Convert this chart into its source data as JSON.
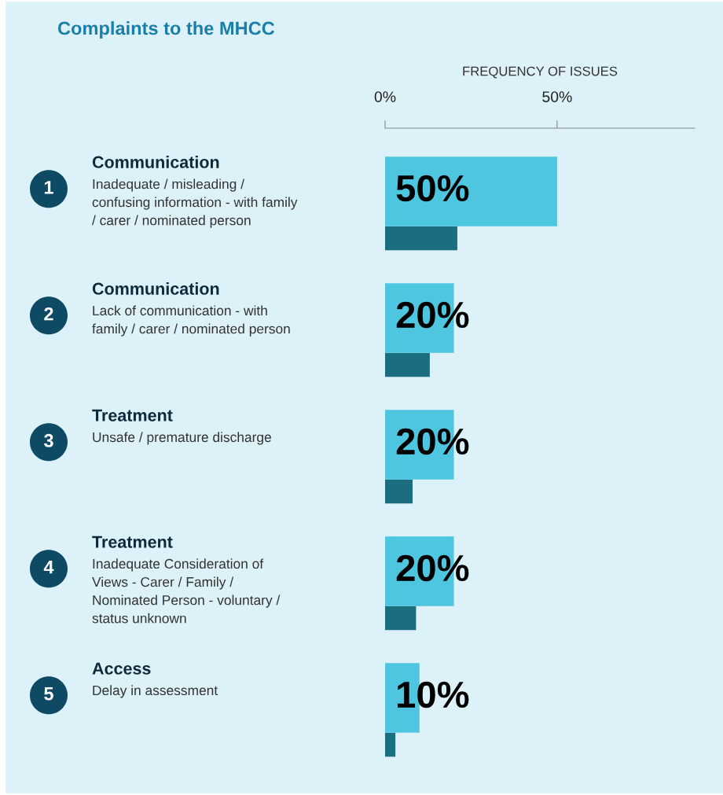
{
  "chart_data": {
    "type": "bar",
    "orientation": "horizontal",
    "title": "Complaints to the MHCC",
    "xlabel": "FREQUENCY OF ISSUES",
    "categories": [
      "Communication\nInadequate / misleading /\nconfusing information - with family\n/ carer / nominated person",
      "Communication\nLack of communication - with\nfamily / carer / nominated person",
      "Treatment\nUnsafe / premature discharge",
      "Treatment\nInadequate Consideration of\nViews - Carer / Family /\nNominated Person - voluntary /\nstatus unknown",
      "Access\nDelay in assessment"
    ],
    "annotations": [
      "1",
      "2",
      "3",
      "4",
      "5"
    ],
    "series": [
      {
        "color": "#4fc6e0",
        "values": [
          50,
          20,
          20,
          20,
          10
        ],
        "value_labels": [
          "50%",
          "20%",
          "20%",
          "20%",
          "10%"
        ]
      },
      {
        "color": "#1a6e80",
        "values": [
          21,
          13,
          8,
          9,
          3
        ]
      }
    ],
    "xlim": [
      0,
      90
    ],
    "xticks": [
      {
        "value": 0,
        "label": "0%"
      },
      {
        "value": 50,
        "label": "50%"
      }
    ],
    "tick_labels": "x",
    "grid": false
  }
}
